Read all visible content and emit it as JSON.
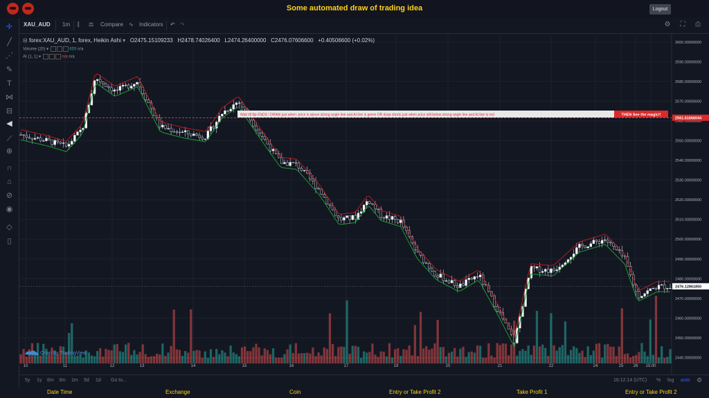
{
  "page_title": "Some automated draw of trading idea",
  "logout_label": "Logout",
  "toolbar": {
    "symbol": "XAU_AUD",
    "interval": "1m",
    "compare": "Compare",
    "indicators": "Indicators"
  },
  "legend": {
    "title": "forex:XAU_AUD, 1, forex, Heikin Ashi",
    "open": "O2475.15109233",
    "high": "H2478.74026400",
    "low": "L2474.26400000",
    "close": "C2476.07606600",
    "change": "+0.40506600 (+0.02%)",
    "volume_label": "Volume (20)",
    "volume_value": "655",
    "volume_extra": "n/a",
    "ai_label": "AI (1, 1)",
    "ai_value1": "n/a",
    "ai_value2": "n/a"
  },
  "annotation": {
    "message": "Wait till flip ENDS   !    DRAW just when:  price is above strong angle line and AI line is green         OR          draw shorts just when price still below strong angle line and AI line is red",
    "cta": "THEN See the magic!!",
    "price_label": "2561.61666044"
  },
  "current_price_label": "2476.12861850",
  "watermark": "Chart by TradingView",
  "bottom_bar": {
    "ranges": [
      "5y",
      "1y",
      "6m",
      "3m",
      "1m",
      "5d",
      "1d"
    ],
    "goto": "Go to...",
    "time": "16:12:14 (UTC)",
    "percent": "%",
    "log": "log",
    "auto": "auto"
  },
  "footer": [
    "Date Time",
    "Exchange",
    "Coin",
    "Entry or Take Profit 2",
    "Take Profit 1",
    "Entry or Take Profit 2"
  ],
  "colors": {
    "background": "#131722",
    "title": "#ffd21a",
    "up": "#26a69a",
    "down": "#ef5350",
    "ai_green": "#1f9d2f",
    "ai_red": "#b71c1c",
    "banner": "#d92b2b"
  },
  "chart_data": {
    "type": "candlestick",
    "chart_style": "Heikin Ashi",
    "x_tick_labels": [
      "10",
      "11",
      "12",
      "13",
      "14",
      "15",
      "16",
      "17",
      "19",
      "20",
      "21",
      "22",
      "24",
      "25",
      "26",
      "15:00"
    ],
    "y_tick_labels": [
      "2600.00000000",
      "2590.00000000",
      "2580.00000000",
      "2570.00000000",
      "2560.00000000",
      "2550.00000000",
      "2540.00000000",
      "2530.00000000",
      "2520.00000000",
      "2510.00000000",
      "2500.00000000",
      "2490.00000000",
      "2480.00000000",
      "2470.00000000",
      "2460.00000000",
      "2450.00000000",
      "2440.00000000"
    ],
    "ylim": [
      2437,
      2601
    ],
    "price_path": [
      {
        "x": 0,
        "y": 2553
      },
      {
        "x": 0.04,
        "y": 2550
      },
      {
        "x": 0.07,
        "y": 2547
      },
      {
        "x": 0.095,
        "y": 2556
      },
      {
        "x": 0.115,
        "y": 2582
      },
      {
        "x": 0.145,
        "y": 2575
      },
      {
        "x": 0.18,
        "y": 2580
      },
      {
        "x": 0.215,
        "y": 2557
      },
      {
        "x": 0.25,
        "y": 2554
      },
      {
        "x": 0.285,
        "y": 2552
      },
      {
        "x": 0.31,
        "y": 2564
      },
      {
        "x": 0.335,
        "y": 2570
      },
      {
        "x": 0.37,
        "y": 2553
      },
      {
        "x": 0.4,
        "y": 2539
      },
      {
        "x": 0.425,
        "y": 2538
      },
      {
        "x": 0.46,
        "y": 2525
      },
      {
        "x": 0.49,
        "y": 2510
      },
      {
        "x": 0.515,
        "y": 2511
      },
      {
        "x": 0.535,
        "y": 2520
      },
      {
        "x": 0.555,
        "y": 2512
      },
      {
        "x": 0.585,
        "y": 2509
      },
      {
        "x": 0.61,
        "y": 2493
      },
      {
        "x": 0.64,
        "y": 2482
      },
      {
        "x": 0.675,
        "y": 2476
      },
      {
        "x": 0.705,
        "y": 2482
      },
      {
        "x": 0.735,
        "y": 2464
      },
      {
        "x": 0.76,
        "y": 2448
      },
      {
        "x": 0.785,
        "y": 2485
      },
      {
        "x": 0.82,
        "y": 2484
      },
      {
        "x": 0.86,
        "y": 2496
      },
      {
        "x": 0.9,
        "y": 2500
      },
      {
        "x": 0.93,
        "y": 2490
      },
      {
        "x": 0.95,
        "y": 2471
      },
      {
        "x": 0.98,
        "y": 2476
      },
      {
        "x": 1.0,
        "y": 2476
      }
    ],
    "ai_line_legend": {
      "green": "price above",
      "red": "price below"
    },
    "reference_line": 2561.61666044,
    "current_price": 2476.1286185,
    "series": [
      {
        "name": "Heikin Ashi candles"
      },
      {
        "name": "Volume (20)"
      },
      {
        "name": "AI (1, 1)"
      }
    ]
  }
}
